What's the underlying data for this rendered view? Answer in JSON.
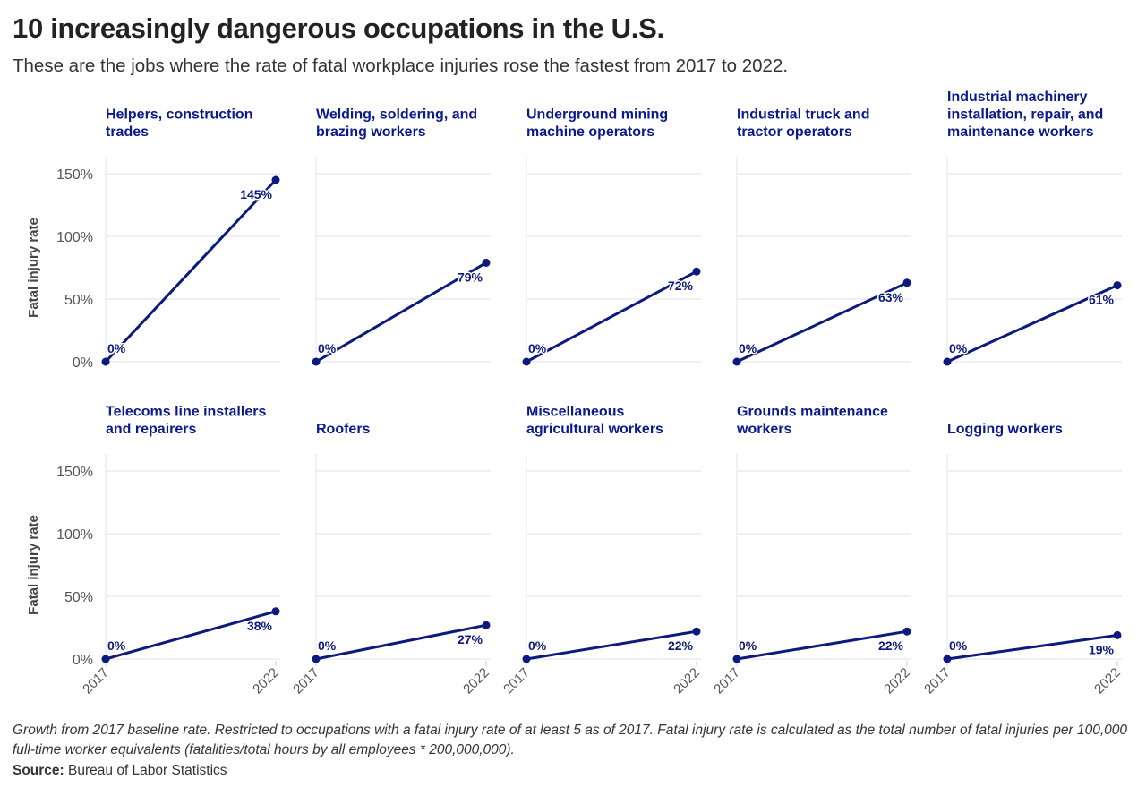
{
  "title": "10 increasingly dangerous occupations in the U.S.",
  "subtitle": "These are the jobs where the rate of fatal workplace injuries rose the fastest from 2017 to 2022.",
  "note": "Growth from 2017 baseline rate. Restricted to occupations with a fatal injury rate of at least 5 as of 2017. Fatal injury rate is calculated as the total number of fatal injuries per 100,000 full-time worker equivalents (fatalities/total hours by all employees * 200,000,000).",
  "source_label": "Source:",
  "source": "Bureau of Labor Statistics",
  "chart_data": {
    "type": "line",
    "layout": "small-multiples 2x5",
    "ylabel": "Fatal injury rate",
    "ylim": [
      0,
      160
    ],
    "yticks": [
      "0%",
      "50%",
      "100%",
      "150%"
    ],
    "ytick_values": [
      0,
      50,
      100,
      150
    ],
    "x": [
      "2017",
      "2022"
    ],
    "grid": true,
    "color": "#0c1a7d",
    "title_color": "#0a1a8c",
    "panels": [
      {
        "title": [
          "Helpers, construction",
          "trades"
        ],
        "values": [
          0,
          145
        ],
        "labels": [
          "0%",
          "145%"
        ]
      },
      {
        "title": [
          "Welding, soldering, and",
          "brazing workers"
        ],
        "values": [
          0,
          79
        ],
        "labels": [
          "0%",
          "79%"
        ]
      },
      {
        "title": [
          "Underground mining",
          "machine operators"
        ],
        "values": [
          0,
          72
        ],
        "labels": [
          "0%",
          "72%"
        ]
      },
      {
        "title": [
          "Industrial truck and",
          "tractor operators"
        ],
        "values": [
          0,
          63
        ],
        "labels": [
          "0%",
          "63%"
        ]
      },
      {
        "title": [
          "Industrial machinery",
          "installation, repair, and",
          "maintenance workers"
        ],
        "values": [
          0,
          61
        ],
        "labels": [
          "0%",
          "61%"
        ]
      },
      {
        "title": [
          "Telecoms line installers",
          "and repairers"
        ],
        "values": [
          0,
          38
        ],
        "labels": [
          "0%",
          "38%"
        ]
      },
      {
        "title": [
          "Roofers"
        ],
        "values": [
          0,
          27
        ],
        "labels": [
          "0%",
          "27%"
        ]
      },
      {
        "title": [
          "Miscellaneous",
          "agricultural workers"
        ],
        "values": [
          0,
          22
        ],
        "labels": [
          "0%",
          "22%"
        ]
      },
      {
        "title": [
          "Grounds maintenance",
          "workers"
        ],
        "values": [
          0,
          22
        ],
        "labels": [
          "0%",
          "22%"
        ]
      },
      {
        "title": [
          "Logging workers"
        ],
        "values": [
          0,
          19
        ],
        "labels": [
          "0%",
          "19%"
        ]
      }
    ]
  }
}
